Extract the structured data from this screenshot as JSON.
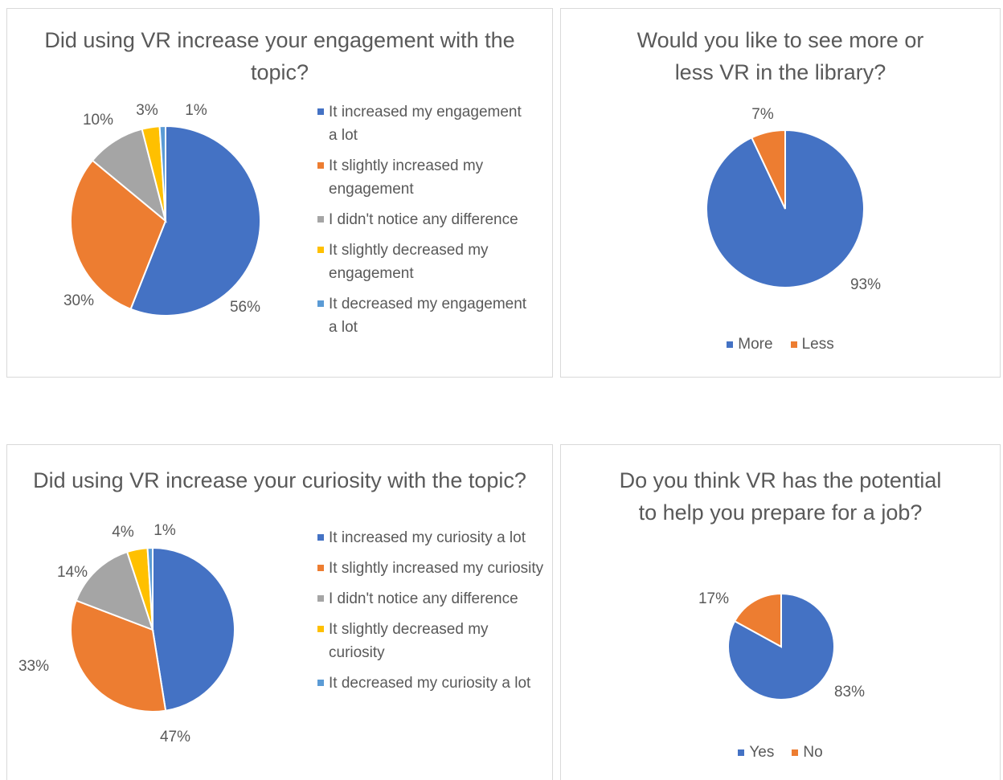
{
  "chart_data": [
    {
      "type": "pie",
      "title": "Did using VR increase your engagement with the topic?",
      "categories": [
        "It increased my engagement a lot",
        "It slightly increased my engagement",
        "I didn't notice any difference",
        "It slightly decreased my engagement",
        "It decreased my engagement a lot"
      ],
      "values": [
        56,
        30,
        10,
        3,
        1
      ],
      "value_labels": [
        "56%",
        "30%",
        "10%",
        "3%",
        "1%"
      ],
      "colors": [
        "#4472c4",
        "#ed7d31",
        "#a5a5a5",
        "#ffc000",
        "#5b9bd5"
      ],
      "legend": "right"
    },
    {
      "type": "pie",
      "title": "Would you like to see more or less VR in the library?",
      "categories": [
        "More",
        "Less"
      ],
      "values": [
        93,
        7
      ],
      "value_labels": [
        "93%",
        "7%"
      ],
      "colors": [
        "#4472c4",
        "#ed7d31"
      ],
      "legend": "bottom"
    },
    {
      "type": "pie",
      "title": "Did using VR increase your curiosity with the topic?",
      "categories": [
        "It increased my curiosity a lot",
        "It slightly increased my curiosity",
        "I didn't notice any difference",
        "It slightly decreased my curiosity",
        "It decreased my curiosity a lot"
      ],
      "values": [
        47,
        33,
        14,
        4,
        1
      ],
      "value_labels": [
        "47%",
        "33%",
        "14%",
        "4%",
        "1%"
      ],
      "colors": [
        "#4472c4",
        "#ed7d31",
        "#a5a5a5",
        "#ffc000",
        "#5b9bd5"
      ],
      "legend": "right"
    },
    {
      "type": "pie",
      "title": "Do you think VR has the potential to help you prepare for a job?",
      "categories": [
        "Yes",
        "No"
      ],
      "values": [
        83,
        17
      ],
      "value_labels": [
        "83%",
        "17%"
      ],
      "colors": [
        "#4472c4",
        "#ed7d31"
      ],
      "legend": "bottom"
    }
  ]
}
